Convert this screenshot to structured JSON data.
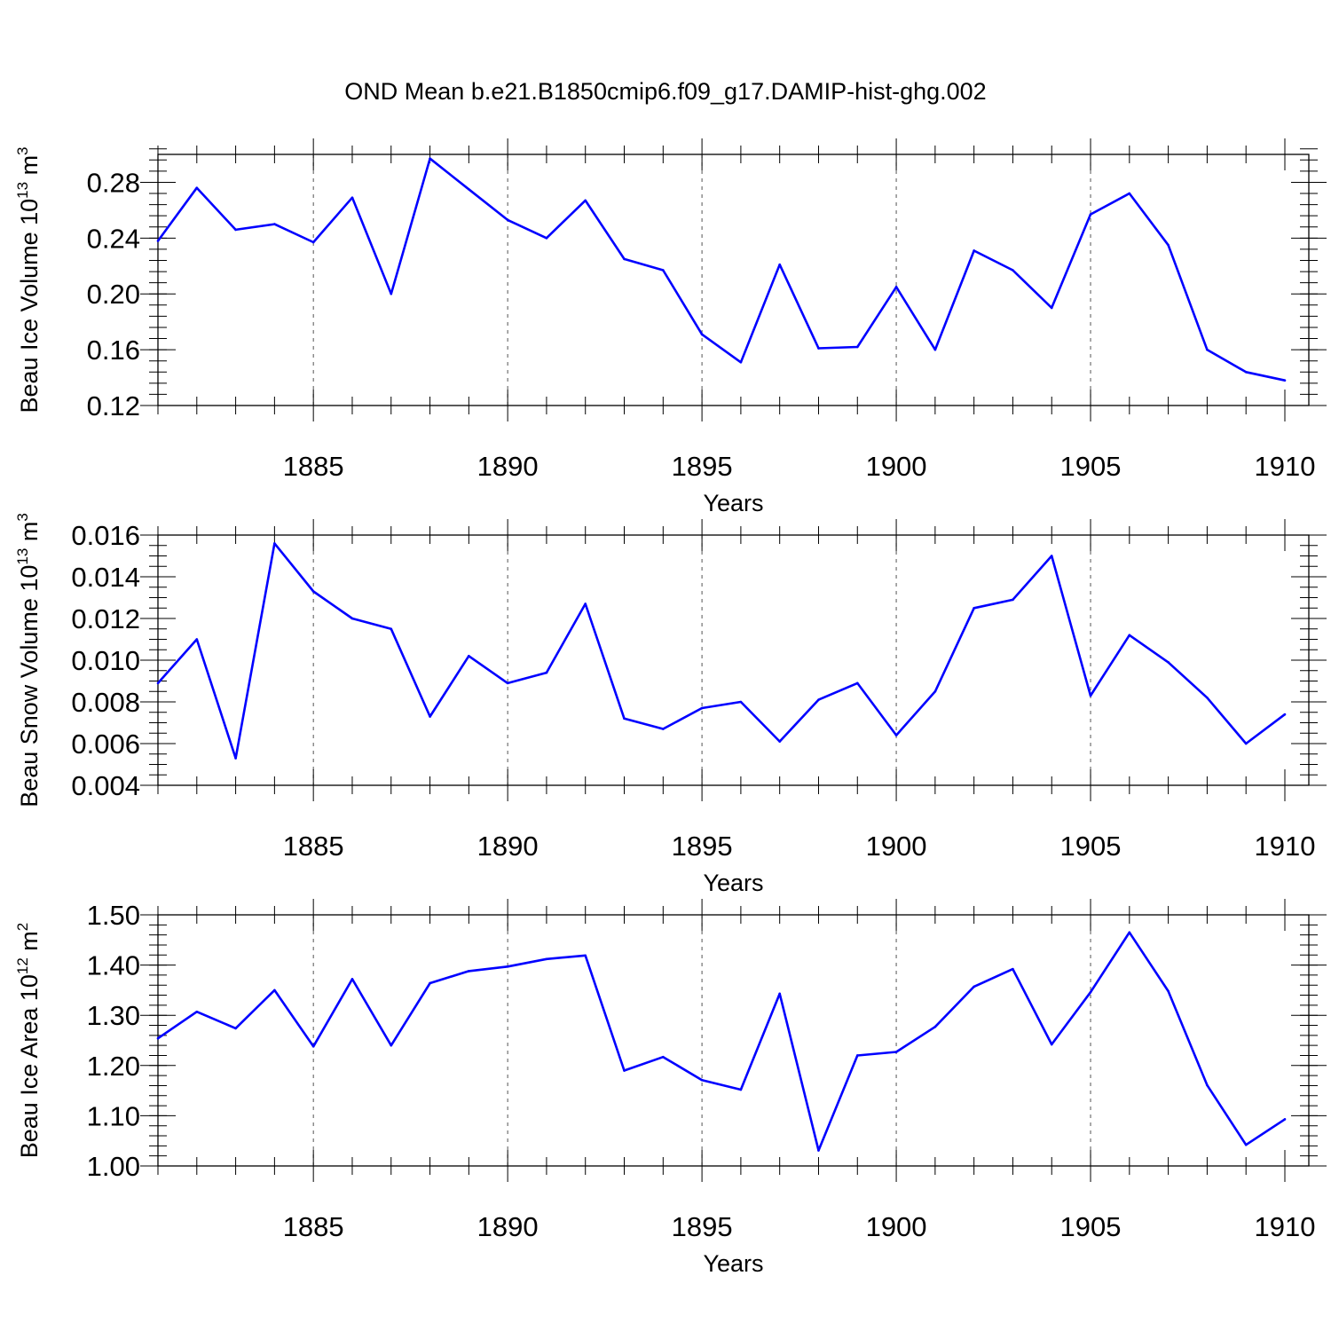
{
  "title": "OND Mean b.e21.B1850cmip6.f09_g17.DAMIP-hist-ghg.002",
  "line_color": "#0000ff",
  "chart_data": [
    {
      "type": "line",
      "xlabel": "Years",
      "ylabel": "Beau Ice Volume 10",
      "ylabel_sup": "13",
      "ylabel_unit": "m",
      "ylabel_unit_sup": "3",
      "xlim": [
        1881,
        1910
      ],
      "ylim": [
        0.12,
        0.3
      ],
      "x_major_ticks": [
        1885,
        1890,
        1895,
        1900,
        1905,
        1910
      ],
      "y_major_ticks": [
        0.12,
        0.16,
        0.2,
        0.24,
        0.28
      ],
      "y_tick_labels": [
        "0.12",
        "0.16",
        "0.20",
        "0.24",
        "0.28"
      ],
      "y_minor_step": 0.008,
      "x": [
        1881,
        1882,
        1883,
        1884,
        1885,
        1886,
        1887,
        1888,
        1889,
        1890,
        1891,
        1892,
        1893,
        1894,
        1895,
        1896,
        1897,
        1898,
        1899,
        1900,
        1901,
        1902,
        1903,
        1904,
        1905,
        1906,
        1907,
        1908,
        1909,
        1910
      ],
      "values": [
        0.238,
        0.276,
        0.246,
        0.25,
        0.237,
        0.269,
        0.2,
        0.297,
        0.275,
        0.253,
        0.24,
        0.267,
        0.225,
        0.217,
        0.171,
        0.151,
        0.221,
        0.161,
        0.162,
        0.205,
        0.16,
        0.231,
        0.217,
        0.19,
        0.257,
        0.272,
        0.235,
        0.16,
        0.144,
        0.138
      ]
    },
    {
      "type": "line",
      "xlabel": "Years",
      "ylabel": "Beau Snow Volume 10",
      "ylabel_sup": "13",
      "ylabel_unit": "m",
      "ylabel_unit_sup": "3",
      "xlim": [
        1881,
        1910
      ],
      "ylim": [
        0.004,
        0.016
      ],
      "x_major_ticks": [
        1885,
        1890,
        1895,
        1900,
        1905,
        1910
      ],
      "y_major_ticks": [
        0.004,
        0.006,
        0.008,
        0.01,
        0.012,
        0.014,
        0.016
      ],
      "y_tick_labels": [
        "0.004",
        "0.006",
        "0.008",
        "0.010",
        "0.012",
        "0.014",
        "0.016"
      ],
      "y_minor_step": 0.0005,
      "x": [
        1881,
        1882,
        1883,
        1884,
        1885,
        1886,
        1887,
        1888,
        1889,
        1890,
        1891,
        1892,
        1893,
        1894,
        1895,
        1896,
        1897,
        1898,
        1899,
        1900,
        1901,
        1902,
        1903,
        1904,
        1905,
        1906,
        1907,
        1908,
        1909,
        1910
      ],
      "values": [
        0.0089,
        0.011,
        0.0053,
        0.0156,
        0.0133,
        0.012,
        0.0115,
        0.0073,
        0.0102,
        0.0089,
        0.0094,
        0.0127,
        0.0072,
        0.0067,
        0.0077,
        0.008,
        0.0061,
        0.0081,
        0.0089,
        0.0064,
        0.0085,
        0.0125,
        0.0129,
        0.015,
        0.0083,
        0.0112,
        0.0099,
        0.0082,
        0.006,
        0.0074
      ]
    },
    {
      "type": "line",
      "xlabel": "Years",
      "ylabel": "Beau Ice Area 10",
      "ylabel_sup": "12",
      "ylabel_unit": "m",
      "ylabel_unit_sup": "2",
      "xlim": [
        1881,
        1910
      ],
      "ylim": [
        1.0,
        1.5
      ],
      "x_major_ticks": [
        1885,
        1890,
        1895,
        1900,
        1905,
        1910
      ],
      "y_major_ticks": [
        1.0,
        1.1,
        1.2,
        1.3,
        1.4,
        1.5
      ],
      "y_tick_labels": [
        "1.00",
        "1.10",
        "1.20",
        "1.30",
        "1.40",
        "1.50"
      ],
      "y_minor_step": 0.02,
      "x": [
        1881,
        1882,
        1883,
        1884,
        1885,
        1886,
        1887,
        1888,
        1889,
        1890,
        1891,
        1892,
        1893,
        1894,
        1895,
        1896,
        1897,
        1898,
        1899,
        1900,
        1901,
        1902,
        1903,
        1904,
        1905,
        1906,
        1907,
        1908,
        1909,
        1910
      ],
      "values": [
        1.254,
        1.307,
        1.274,
        1.35,
        1.238,
        1.372,
        1.24,
        1.364,
        1.388,
        1.397,
        1.412,
        1.419,
        1.19,
        1.217,
        1.171,
        1.152,
        1.343,
        1.031,
        1.22,
        1.227,
        1.277,
        1.357,
        1.392,
        1.242,
        1.346,
        1.465,
        1.348,
        1.161,
        1.042,
        1.093
      ]
    }
  ]
}
